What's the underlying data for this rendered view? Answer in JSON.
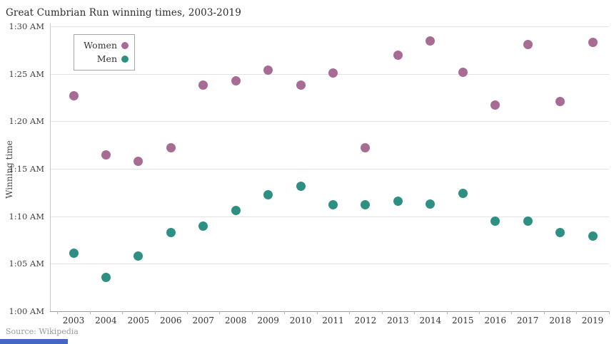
{
  "page": {
    "source": "Source: Wikipedia"
  },
  "colors": {
    "women": "#a76b94",
    "men": "#2d9082",
    "gridline": "#e2e2e2",
    "axis": "#9a9a9a",
    "title_text": "#2b2b2b",
    "tick_text": "#424242",
    "source_text": "#9b9b9b",
    "bottom_strip_blue": "#4567c4"
  },
  "chart_data": {
    "type": "scatter",
    "title": "Great Cumbrian Run winning times, 2003-2019",
    "xlabel": "",
    "ylabel": "Winning time",
    "categories": [
      "2003",
      "2004",
      "2005",
      "2006",
      "2007",
      "2008",
      "2009",
      "2010",
      "2011",
      "2012",
      "2013",
      "2014",
      "2015",
      "2016",
      "2017",
      "2018",
      "2019"
    ],
    "y_axis_unit": "time of day formatted as h:mm AM (winning time after 1:00)",
    "ylim_minutes_after_one": [
      0,
      30
    ],
    "y_ticks": [
      {
        "minutes": 30,
        "label": "1:30 AM"
      },
      {
        "minutes": 25,
        "label": "1:25 AM"
      },
      {
        "minutes": 20,
        "label": "1:20 AM"
      },
      {
        "minutes": 15,
        "label": "1:15 AM"
      },
      {
        "minutes": 10,
        "label": "1:10 AM"
      },
      {
        "minutes": 5,
        "label": "1:05 AM"
      },
      {
        "minutes": 0,
        "label": "1:00 AM"
      }
    ],
    "grid": "horizontal-only",
    "legend": {
      "position": "inside-top-left",
      "entries": [
        {
          "name": "Women",
          "color": "#a76b94"
        },
        {
          "name": "Men",
          "color": "#2d9082"
        }
      ]
    },
    "series": [
      {
        "name": "Women",
        "color": "#a76b94",
        "values_minutes_after_one": [
          22.7,
          16.5,
          15.8,
          17.2,
          23.8,
          24.3,
          25.4,
          23.8,
          25.1,
          17.2,
          27.0,
          28.5,
          25.2,
          21.7,
          28.1,
          22.1,
          28.3
        ]
      },
      {
        "name": "Men",
        "color": "#2d9082",
        "values_minutes_after_one": [
          6.1,
          3.6,
          5.8,
          8.3,
          9.0,
          10.6,
          12.3,
          13.2,
          11.2,
          11.2,
          11.6,
          11.3,
          12.4,
          9.5,
          9.5,
          8.3,
          7.9
        ]
      }
    ]
  }
}
